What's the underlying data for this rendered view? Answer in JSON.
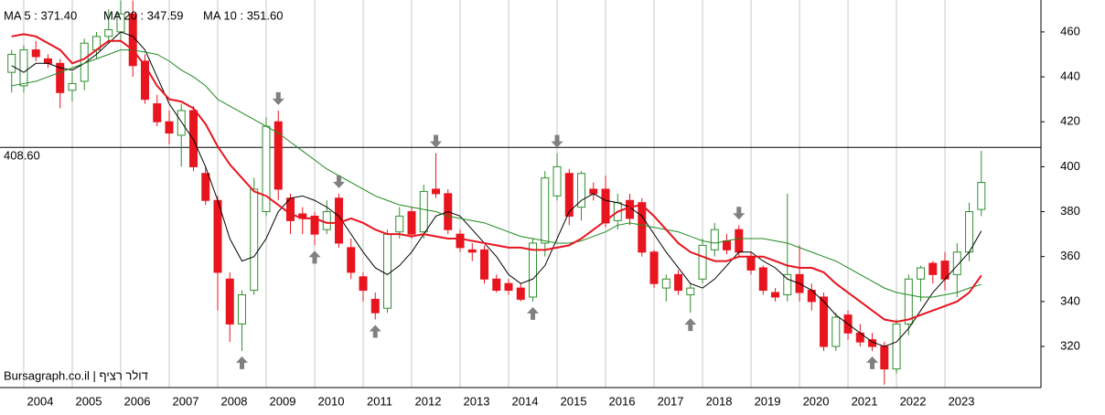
{
  "chart_data": {
    "type": "candlestick",
    "x": [
      2003.75,
      2004,
      2004.25,
      2004.5,
      2004.75,
      2005,
      2005.25,
      2005.5,
      2005.75,
      2006,
      2006.25,
      2006.5,
      2006.75,
      2007,
      2007.25,
      2007.5,
      2007.75,
      2008,
      2008.25,
      2008.5,
      2008.75,
      2009,
      2009.25,
      2009.5,
      2009.75,
      2010,
      2010.25,
      2010.5,
      2010.75,
      2011,
      2011.25,
      2011.5,
      2011.75,
      2012,
      2012.25,
      2012.5,
      2012.75,
      2013,
      2013.25,
      2013.5,
      2013.75,
      2014,
      2014.25,
      2014.5,
      2014.75,
      2015,
      2015.25,
      2015.5,
      2015.75,
      2016,
      2016.25,
      2016.5,
      2016.75,
      2017,
      2017.25,
      2017.5,
      2017.75,
      2018,
      2018.25,
      2018.5,
      2018.75,
      2019,
      2019.25,
      2019.5,
      2019.75,
      2020,
      2020.25,
      2020.5,
      2020.75,
      2021,
      2021.25,
      2021.5,
      2021.75,
      2022,
      2022.25,
      2022.5,
      2022.75,
      2023,
      2023.25,
      2023.5,
      2023.75
    ],
    "open": [
      442,
      436,
      452,
      448,
      446,
      434,
      438,
      452,
      458,
      460,
      468,
      447,
      428,
      420,
      414,
      425,
      397,
      385,
      350,
      330,
      345,
      380,
      420,
      386,
      379,
      378,
      372,
      386,
      364,
      351,
      341,
      337,
      371,
      380,
      371,
      390,
      388,
      370,
      363,
      363,
      350,
      348,
      346,
      342,
      366,
      387,
      397,
      382,
      390,
      390,
      376,
      385,
      384,
      362,
      346,
      352,
      343,
      350,
      363,
      367,
      372,
      360,
      355,
      344,
      343,
      352,
      345,
      342,
      320,
      334,
      326,
      323,
      320,
      310,
      330,
      350,
      357,
      358,
      352,
      362,
      381
    ],
    "high": [
      452,
      454,
      456,
      450,
      448,
      442,
      457,
      460,
      470,
      474,
      474,
      450,
      432,
      425,
      428,
      427,
      400,
      387,
      353,
      345,
      395,
      422,
      425,
      388,
      382,
      380,
      385,
      388,
      368,
      353,
      344,
      372,
      382,
      382,
      392,
      406,
      390,
      372,
      366,
      365,
      352,
      350,
      348,
      368,
      398,
      406,
      399,
      398,
      393,
      396,
      388,
      388,
      386,
      363,
      352,
      354,
      348,
      368,
      375,
      370,
      374,
      362,
      356,
      346,
      388,
      365,
      348,
      344,
      335,
      336,
      330,
      326,
      322,
      332,
      352,
      356,
      358,
      362,
      366,
      384,
      407
    ],
    "low": [
      433,
      433,
      447,
      444,
      426,
      429,
      434,
      448,
      455,
      456,
      440,
      428,
      418,
      410,
      400,
      398,
      383,
      336,
      322,
      318,
      343,
      378,
      385,
      370,
      370,
      365,
      370,
      364,
      350,
      340,
      332,
      335,
      368,
      368,
      368,
      386,
      370,
      362,
      358,
      348,
      344,
      343,
      340,
      340,
      360,
      385,
      374,
      376,
      385,
      373,
      372,
      374,
      360,
      346,
      340,
      343,
      335,
      348,
      360,
      361,
      360,
      352,
      343,
      340,
      340,
      340,
      336,
      318,
      318,
      323,
      320,
      318,
      303,
      308,
      325,
      340,
      348,
      345,
      342,
      358,
      378
    ],
    "close": [
      450,
      452,
      449,
      446,
      433,
      437,
      455,
      458,
      461,
      468,
      445,
      430,
      420,
      415,
      425,
      400,
      385,
      353,
      330,
      343,
      390,
      418,
      390,
      376,
      377,
      370,
      380,
      366,
      353,
      345,
      335,
      370,
      378,
      370,
      389,
      388,
      372,
      364,
      362,
      350,
      345,
      345,
      341,
      366,
      395,
      400,
      378,
      397,
      388,
      375,
      384,
      377,
      362,
      348,
      350,
      345,
      346,
      365,
      372,
      363,
      362,
      354,
      345,
      342,
      352,
      344,
      340,
      320,
      333,
      326,
      322,
      320,
      310,
      330,
      350,
      355,
      352,
      350,
      362,
      380,
      393
    ],
    "up_color": "#2f8f2f",
    "down_color": "#e8141e",
    "series": [
      {
        "name": "MA 5 : 371.40",
        "color": "#000000",
        "width": 1,
        "values": [
          445,
          442,
          446,
          446,
          444,
          443,
          446,
          450,
          455,
          460,
          458,
          452,
          440,
          428,
          420,
          412,
          400,
          385,
          368,
          358,
          360,
          368,
          380,
          386,
          387,
          385,
          382,
          378,
          370,
          362,
          355,
          352,
          356,
          362,
          370,
          378,
          380,
          378,
          372,
          366,
          360,
          352,
          348,
          350,
          356,
          368,
          380,
          385,
          388,
          385,
          384,
          382,
          378,
          370,
          362,
          355,
          348,
          346,
          350,
          356,
          362,
          362,
          358,
          355,
          350,
          348,
          345,
          340,
          334,
          330,
          326,
          322,
          320,
          322,
          328,
          336,
          344,
          350,
          356,
          362,
          371.4
        ]
      },
      {
        "name": "MA 20 : 347.59",
        "color": "#1f8a1f",
        "width": 1,
        "values": [
          436,
          437,
          438,
          440,
          442,
          444,
          446,
          448,
          450,
          452,
          452,
          451,
          450,
          447,
          443,
          440,
          436,
          430,
          427,
          424,
          421,
          418,
          415,
          411,
          407,
          403,
          399,
          396,
          393,
          390,
          387,
          385,
          383,
          382,
          381,
          380,
          378,
          377,
          376,
          375,
          373,
          371,
          369,
          368,
          367,
          366,
          366,
          367,
          369,
          371,
          374,
          375,
          374,
          373,
          372,
          371,
          369,
          367,
          366,
          367,
          368,
          368,
          368,
          367,
          366,
          364,
          362,
          360,
          358,
          355,
          352,
          349,
          346,
          344,
          343,
          342,
          342,
          343,
          344,
          346,
          347.59
        ]
      },
      {
        "name": "MA 10 : 351.60",
        "color": "#e8141e",
        "width": 2,
        "values": [
          458,
          459,
          458,
          455,
          452,
          446,
          448,
          452,
          456,
          456,
          452,
          445,
          436,
          430,
          429,
          426,
          419,
          409,
          401,
          395,
          389,
          387,
          383,
          379,
          377,
          377,
          375,
          375,
          377,
          375,
          372,
          370,
          370,
          369,
          370,
          369,
          368,
          368,
          367,
          366,
          365,
          364,
          364,
          363,
          363,
          364,
          365,
          368,
          372,
          376,
          380,
          382,
          383,
          378,
          372,
          366,
          362,
          360,
          358,
          358,
          360,
          360,
          360,
          358,
          356,
          355,
          355,
          353,
          348,
          344,
          340,
          336,
          332,
          331,
          332,
          334,
          336,
          338,
          340,
          344,
          351.6
        ]
      }
    ],
    "reference_line": {
      "value": 408.6,
      "label": "408.60"
    },
    "signals": {
      "down": [
        2009.25,
        2010.5,
        2012.5,
        2015,
        2018.75
      ],
      "up": [
        2008.5,
        2010,
        2011.25,
        2014.5,
        2017.75,
        2021.5
      ]
    },
    "watermark": "Bursagraph.co.il | דולר רציף",
    "xlim": [
      2003.51,
      2024.98
    ],
    "ylim": [
      301.7,
      474.2
    ],
    "xticks": [
      2004,
      2005,
      2006,
      2007,
      2008,
      2009,
      2010,
      2011,
      2012,
      2013,
      2014,
      2015,
      2016,
      2017,
      2018,
      2019,
      2020,
      2021,
      2022,
      2023
    ],
    "yticks": [
      320,
      340,
      360,
      380,
      400,
      420,
      440,
      460
    ],
    "grid": true
  }
}
